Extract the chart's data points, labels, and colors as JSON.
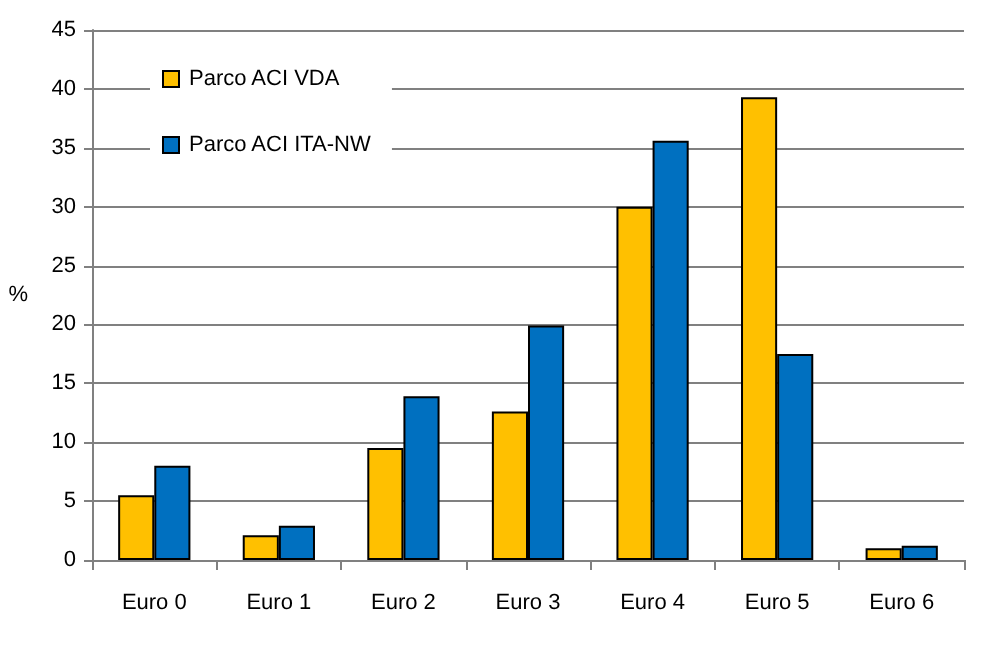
{
  "chart_data": {
    "type": "bar",
    "ylabel": "%",
    "categories": [
      "Euro 0",
      "Euro 1",
      "Euro 2",
      "Euro 3",
      "Euro 4",
      "Euro 5",
      "Euro 6"
    ],
    "series": [
      {
        "name": "Parco ACI VDA",
        "color": "#ffc000",
        "values": [
          5.5,
          2.1,
          9.5,
          12.6,
          30.0,
          39.3,
          1.0
        ]
      },
      {
        "name": "Parco ACI ITA-NW",
        "color": "#0070c0",
        "values": [
          8.0,
          2.9,
          13.9,
          19.9,
          35.6,
          17.5,
          1.2
        ]
      }
    ],
    "ylim": [
      0,
      45
    ],
    "yticks": [
      0,
      5,
      10,
      15,
      20,
      25,
      30,
      35,
      40,
      45
    ],
    "grid": "y",
    "legend": "top left"
  }
}
